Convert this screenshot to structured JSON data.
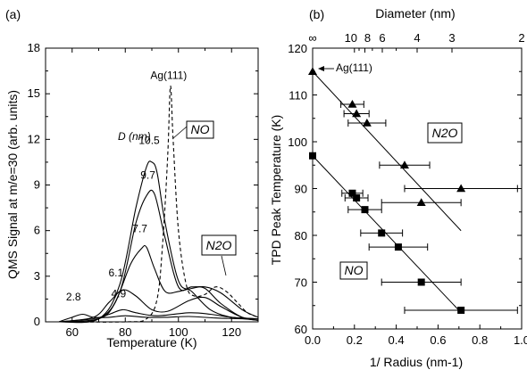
{
  "chart_data": [
    {
      "type": "line",
      "panel_label": "(a)",
      "xlabel": "Temperature (K)",
      "ylabel": "QMS Signal at m/e=30 (arb. units)",
      "xlim": [
        50,
        130
      ],
      "ylim": [
        0,
        18
      ],
      "xticks": [
        "60",
        "80",
        "100",
        "120"
      ],
      "yticks": [
        "0",
        "3",
        "6",
        "9",
        "12",
        "15",
        "18"
      ],
      "legend_header": "D (nm)",
      "box_labels": {
        "no": "NO",
        "n2o": "N2O"
      },
      "series": [
        {
          "name": "10.5",
          "style": "solid",
          "x": [
            55,
            70,
            78,
            84,
            88,
            90,
            92,
            95,
            100,
            105,
            112,
            120,
            130
          ],
          "y": [
            0,
            0.2,
            2.5,
            7.5,
            10.2,
            10.5,
            9.8,
            6.5,
            2.7,
            2.0,
            0.8,
            0.3,
            0.2
          ]
        },
        {
          "name": "9.7",
          "style": "solid",
          "x": [
            55,
            70,
            78,
            84,
            88,
            91,
            95,
            100,
            105,
            110,
            116,
            124,
            130
          ],
          "y": [
            0,
            0.2,
            2.0,
            6.5,
            8.3,
            8.4,
            5.5,
            2.3,
            2.3,
            2.2,
            1.2,
            0.3,
            0.1
          ]
        },
        {
          "name": "7.7",
          "style": "solid",
          "x": [
            55,
            70,
            76,
            82,
            86,
            88,
            91,
            95,
            100,
            105,
            110,
            116,
            124,
            130
          ],
          "y": [
            0,
            0.2,
            1.2,
            3.8,
            4.8,
            4.9,
            3.5,
            2.0,
            2.0,
            2.2,
            2.3,
            1.9,
            0.8,
            0.3
          ]
        },
        {
          "name": "6.1",
          "style": "solid",
          "x": [
            55,
            68,
            74,
            79,
            84,
            90,
            96,
            104,
            110,
            116,
            124,
            130
          ],
          "y": [
            0,
            0.3,
            1.3,
            2.1,
            1.7,
            0.8,
            0.7,
            1.4,
            1.6,
            1.0,
            0.3,
            0.2
          ]
        },
        {
          "name": "4.9",
          "style": "solid",
          "x": [
            55,
            68,
            74,
            79,
            84,
            92,
            104,
            112,
            120,
            130
          ],
          "y": [
            0,
            0.2,
            0.5,
            0.8,
            0.6,
            0.4,
            0.6,
            0.5,
            0.3,
            0.2
          ]
        },
        {
          "name": "2.8",
          "style": "solid",
          "x": [
            55,
            60,
            64,
            68,
            74,
            80,
            88,
            96,
            104,
            114,
            124,
            130
          ],
          "y": [
            0,
            0.3,
            0.5,
            0.3,
            0.3,
            0.4,
            0.3,
            0.3,
            0.35,
            0.25,
            0.2,
            0.1
          ]
        },
        {
          "name": "Ag(111)",
          "style": "dashed",
          "x": [
            55,
            80,
            88,
            92,
            94,
            96,
            97,
            98,
            100,
            103,
            106,
            110,
            114,
            118,
            122,
            126,
            130
          ],
          "y": [
            0,
            0,
            0.2,
            1.5,
            5.0,
            11.0,
            15.5,
            12.0,
            6.0,
            2.4,
            1.7,
            1.8,
            2.3,
            2.0,
            1.3,
            0.6,
            0.3
          ]
        }
      ]
    },
    {
      "type": "scatter",
      "panel_label": "(b)",
      "xlabel": "1/ Radius (nm-1)",
      "ylabel": "TPD Peak Temperature (K)",
      "top_xlabel": "Diameter (nm)",
      "xlim": [
        0.0,
        1.0
      ],
      "ylim": [
        60,
        120
      ],
      "xticks": [
        "0.0",
        "0.2",
        "0.4",
        "0.6",
        "0.8",
        "1.0"
      ],
      "yticks": [
        "60",
        "70",
        "80",
        "90",
        "100",
        "110",
        "120"
      ],
      "top_ticks": [
        "∞",
        "10",
        "8",
        "6",
        "4",
        "3",
        "2"
      ],
      "annotation": "Ag(111)",
      "box_labels": {
        "no": "NO",
        "n2o": "N2O"
      },
      "series": [
        {
          "name": "N2O",
          "marker": "triangle",
          "points": [
            {
              "x": 0.0,
              "y": 115,
              "xerr": 0
            },
            {
              "x": 0.19,
              "y": 108,
              "xerr": 0.055
            },
            {
              "x": 0.21,
              "y": 106,
              "xerr": 0.06
            },
            {
              "x": 0.26,
              "y": 104,
              "xerr": 0.09
            },
            {
              "x": 0.44,
              "y": 95,
              "xerr": 0.12
            },
            {
              "x": 0.52,
              "y": 87,
              "xerr": 0.19
            },
            {
              "x": 0.71,
              "y": 90,
              "xerr": 0.27
            }
          ],
          "fit": {
            "x": [
              0.0,
              0.71
            ],
            "y": [
              115,
              81
            ]
          }
        },
        {
          "name": "NO",
          "marker": "square",
          "points": [
            {
              "x": 0.0,
              "y": 97,
              "xerr": 0
            },
            {
              "x": 0.19,
              "y": 89,
              "xerr": 0.05
            },
            {
              "x": 0.21,
              "y": 88,
              "xerr": 0.055
            },
            {
              "x": 0.25,
              "y": 85.5,
              "xerr": 0.08
            },
            {
              "x": 0.33,
              "y": 80.5,
              "xerr": 0.1
            },
            {
              "x": 0.41,
              "y": 77.5,
              "xerr": 0.14
            },
            {
              "x": 0.52,
              "y": 70,
              "xerr": 0.19
            },
            {
              "x": 0.71,
              "y": 64,
              "xerr": 0.27
            }
          ],
          "fit": {
            "x": [
              0.0,
              0.71
            ],
            "y": [
              97,
              63.5
            ]
          }
        }
      ]
    }
  ]
}
